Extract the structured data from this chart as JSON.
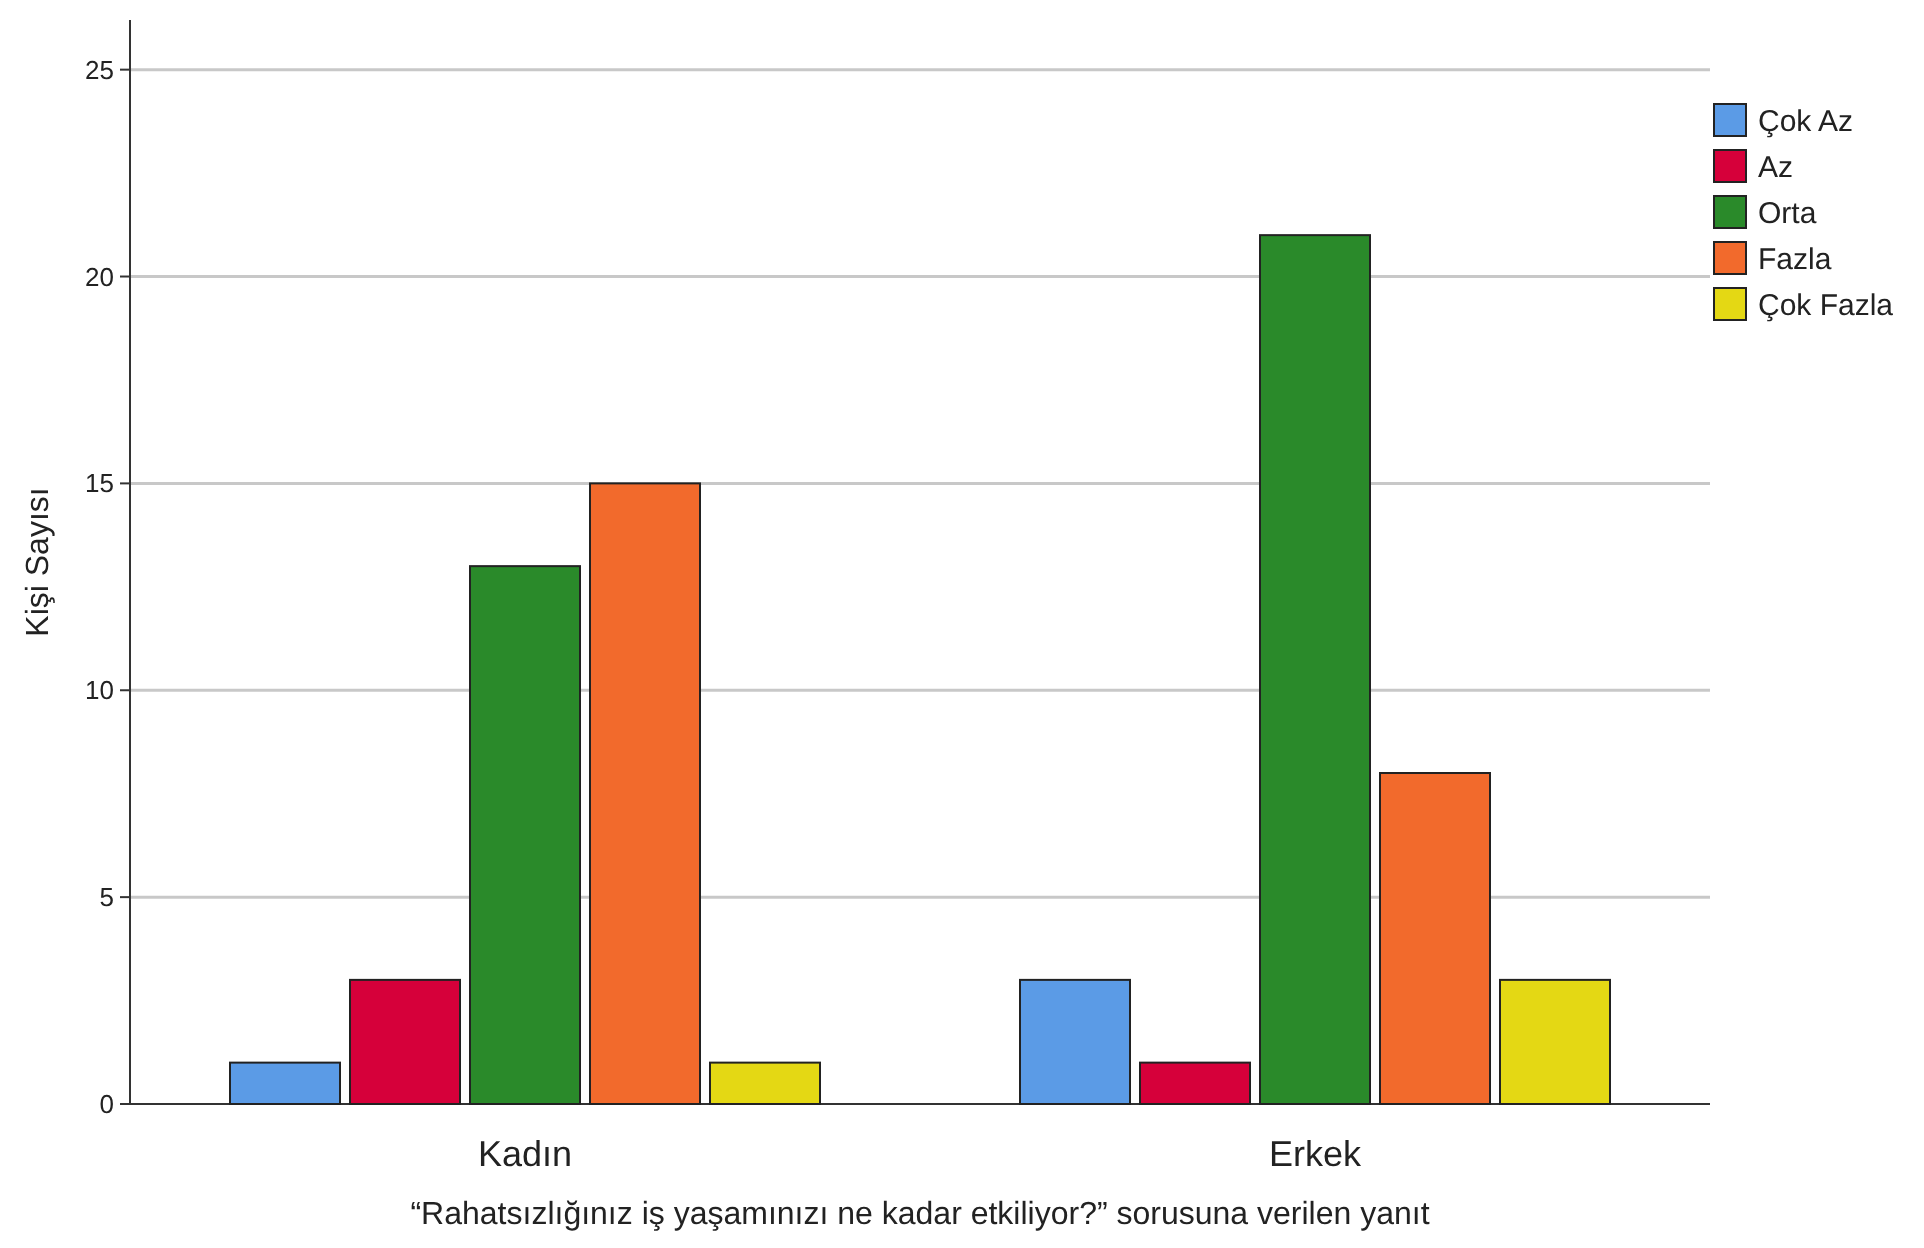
{
  "chart_data": {
    "type": "bar",
    "xlabel": "“Rahatsızlığınız iş yaşamınızı ne kadar etkiliyor?” sorusuna verilen yanıt",
    "ylabel": "Kişi Sayısı",
    "categories": [
      "Kadın",
      "Erkek"
    ],
    "series": [
      {
        "name": "Çok Az",
        "color": "#5b9be6",
        "values": [
          1,
          3
        ]
      },
      {
        "name": "Az",
        "color": "#d6003a",
        "values": [
          3,
          1
        ]
      },
      {
        "name": "Orta",
        "color": "#2a8a2a",
        "values": [
          13,
          21
        ]
      },
      {
        "name": "Fazla",
        "color": "#f26a2c",
        "values": [
          15,
          8
        ]
      },
      {
        "name": "Çok Fazla",
        "color": "#e4d814",
        "values": [
          1,
          3
        ]
      }
    ],
    "ylim": [
      0,
      26.2
    ],
    "yticks": [
      0,
      5,
      10,
      15,
      20,
      25
    ],
    "grid": "y",
    "legend": "top right"
  }
}
